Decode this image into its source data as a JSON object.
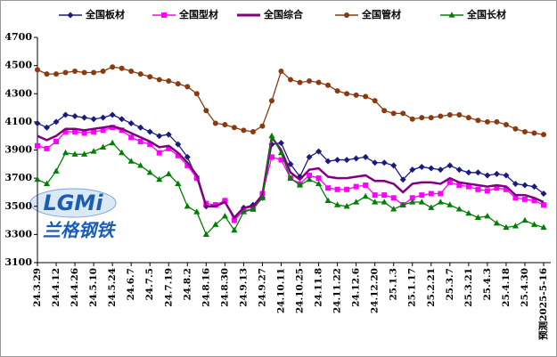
{
  "chart_data": {
    "type": "line",
    "logo": {
      "mark": "LGMi",
      "name": "兰格钢铁"
    },
    "categories": [
      "24.3.29",
      null,
      "24.4.12",
      null,
      "24.4.26",
      null,
      "24.5.10",
      null,
      "24.5.24",
      null,
      "24.6.7",
      null,
      "24.7.5",
      null,
      "24.7.19",
      null,
      "24.8.2",
      null,
      "24.8.16",
      null,
      "24.8.30",
      null,
      "24.9.13",
      null,
      "24.9.27",
      null,
      "24.10.11",
      null,
      "24.10.25",
      null,
      "24.11.8",
      null,
      "24.11.22",
      null,
      "24.12.6",
      null,
      "24.12.20",
      null,
      "25.1.3",
      null,
      "25.1.17",
      null,
      "25.2.21",
      null,
      "25.3.7",
      null,
      "25.3.21",
      null,
      "25.4.3",
      null,
      "25.4.18",
      null,
      "25.4.30",
      null,
      "预测2025-5-16"
    ],
    "ylim": [
      3100,
      4700
    ],
    "yticks": [
      3100,
      3300,
      3500,
      3700,
      3900,
      4100,
      4300,
      4500,
      4700
    ],
    "series": [
      {
        "name": "全国板材",
        "color": "#1a1a80",
        "marker": "diamond",
        "values": [
          4090,
          4060,
          4100,
          4150,
          4140,
          4130,
          4120,
          4130,
          4150,
          4120,
          4090,
          4060,
          4030,
          4000,
          4010,
          3940,
          3850,
          3700,
          3500,
          3510,
          3540,
          3410,
          3490,
          3510,
          3560,
          3940,
          3950,
          3800,
          3710,
          3850,
          3890,
          3820,
          3830,
          3830,
          3840,
          3850,
          3810,
          3810,
          3790,
          3690,
          3760,
          3780,
          3770,
          3760,
          3790,
          3760,
          3740,
          3740,
          3720,
          3730,
          3720,
          3660,
          3650,
          3640,
          3590
        ]
      },
      {
        "name": "全国型材",
        "color": "#ff00ff",
        "marker": "square",
        "values": [
          3930,
          3910,
          3960,
          4030,
          4030,
          4020,
          4030,
          4040,
          4060,
          4040,
          3990,
          3960,
          3940,
          3880,
          3910,
          3860,
          3790,
          3700,
          3520,
          3510,
          3540,
          3400,
          3470,
          3480,
          3590,
          3850,
          3830,
          3700,
          3660,
          3720,
          3700,
          3630,
          3620,
          3620,
          3640,
          3650,
          3580,
          3580,
          3560,
          3510,
          3560,
          3580,
          3590,
          3590,
          3670,
          3650,
          3640,
          3620,
          3610,
          3630,
          3620,
          3560,
          3550,
          3540,
          3510
        ]
      },
      {
        "name": "全国综合",
        "color": "#800080",
        "marker": "none",
        "values": [
          4000,
          3970,
          4000,
          4050,
          4050,
          4040,
          4050,
          4060,
          4070,
          4050,
          4020,
          3990,
          3960,
          3920,
          3930,
          3880,
          3810,
          3720,
          3500,
          3500,
          3530,
          3420,
          3490,
          3500,
          3580,
          3990,
          3900,
          3740,
          3690,
          3760,
          3770,
          3710,
          3700,
          3700,
          3710,
          3720,
          3680,
          3680,
          3660,
          3600,
          3660,
          3670,
          3670,
          3660,
          3700,
          3670,
          3660,
          3650,
          3640,
          3650,
          3640,
          3580,
          3580,
          3560,
          3530
        ]
      },
      {
        "name": "全国管材",
        "color": "#8b3a0f",
        "marker": "circle",
        "values": [
          4470,
          4440,
          4440,
          4450,
          4460,
          4450,
          4450,
          4460,
          4490,
          4480,
          4460,
          4440,
          4420,
          4400,
          4390,
          4370,
          4350,
          4300,
          4180,
          4090,
          4080,
          4060,
          4040,
          4030,
          4070,
          4250,
          4460,
          4400,
          4380,
          4390,
          4380,
          4360,
          4320,
          4300,
          4290,
          4280,
          4250,
          4180,
          4160,
          4160,
          4120,
          4130,
          4130,
          4140,
          4150,
          4150,
          4130,
          4110,
          4100,
          4100,
          4080,
          4050,
          4030,
          4020,
          4010
        ]
      },
      {
        "name": "全国长材",
        "color": "#008000",
        "marker": "triangle",
        "values": [
          3690,
          3660,
          3750,
          3880,
          3870,
          3870,
          3890,
          3920,
          3950,
          3880,
          3820,
          3790,
          3740,
          3690,
          3730,
          3660,
          3500,
          3460,
          3300,
          3370,
          3430,
          3330,
          3460,
          3480,
          3560,
          4000,
          3880,
          3700,
          3650,
          3690,
          3660,
          3540,
          3510,
          3500,
          3530,
          3570,
          3530,
          3530,
          3480,
          3510,
          3530,
          3530,
          3490,
          3530,
          3510,
          3480,
          3450,
          3420,
          3430,
          3380,
          3350,
          3360,
          3400,
          3370,
          3350
        ]
      }
    ]
  }
}
